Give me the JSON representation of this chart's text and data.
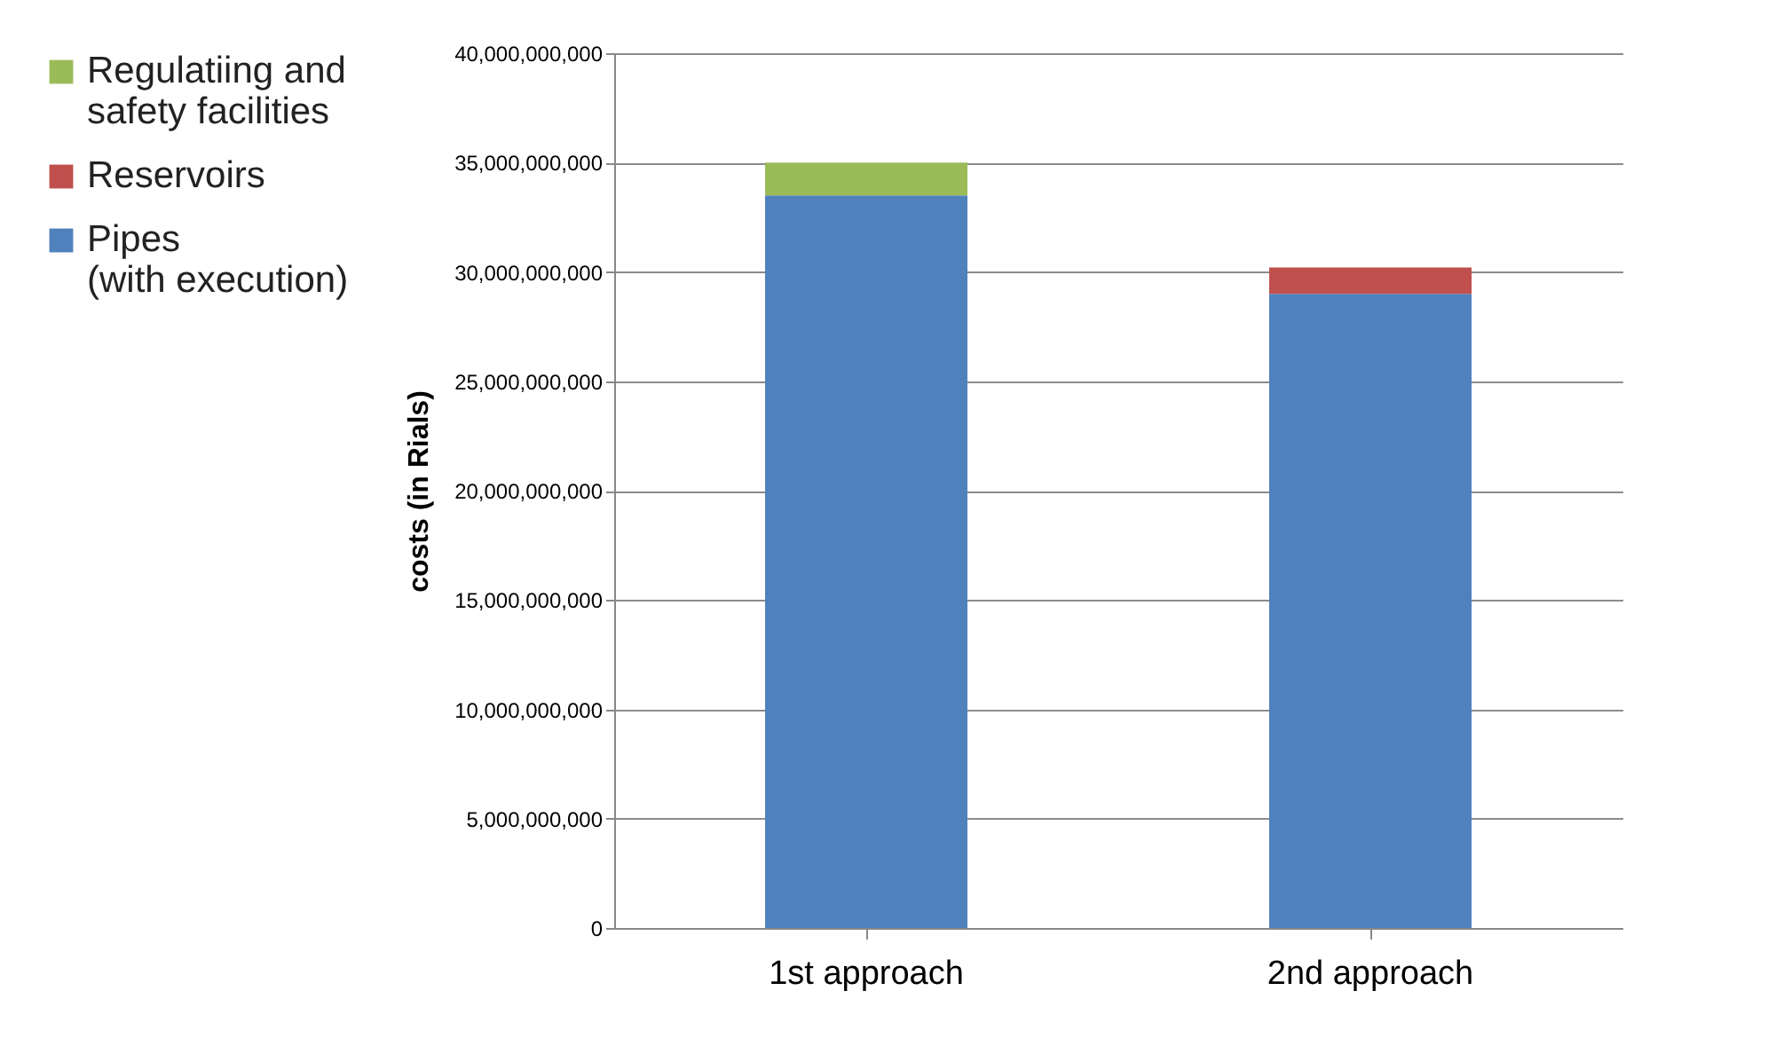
{
  "chart_data": {
    "type": "bar",
    "stacked": true,
    "ylabel": "costs (in Rials)",
    "categories": [
      "1st approach",
      "2nd approach"
    ],
    "series": [
      {
        "name": "Pipes (with execution)",
        "color": "#4f81bd",
        "values": [
          33500000000,
          29000000000
        ]
      },
      {
        "name": "Reservoirs",
        "color": "#c0504d",
        "values": [
          null,
          1200000000
        ]
      },
      {
        "name": "Regulatiing and safety facilities",
        "color": "#9bbb59",
        "values": [
          1500000000,
          null
        ]
      }
    ],
    "ylim": [
      0,
      40000000000
    ],
    "yticks": [
      0,
      {
        "value": 5000000000,
        "label": "5,000,000,000"
      },
      {
        "value": 10000000000,
        "label": "10,000,000,000"
      },
      {
        "value": 15000000000,
        "label": "15,000,000,000"
      },
      {
        "value": 20000000000,
        "label": "20,000,000,000"
      },
      {
        "value": 25000000000,
        "label": "25,000,000,000"
      },
      {
        "value": 30000000000,
        "label": "30,000,000,000"
      },
      {
        "value": 35000000000,
        "label": "35,000,000,000"
      },
      {
        "value": 40000000000,
        "label": "40,000,000,000"
      }
    ],
    "grid": "y",
    "legend": "left"
  }
}
